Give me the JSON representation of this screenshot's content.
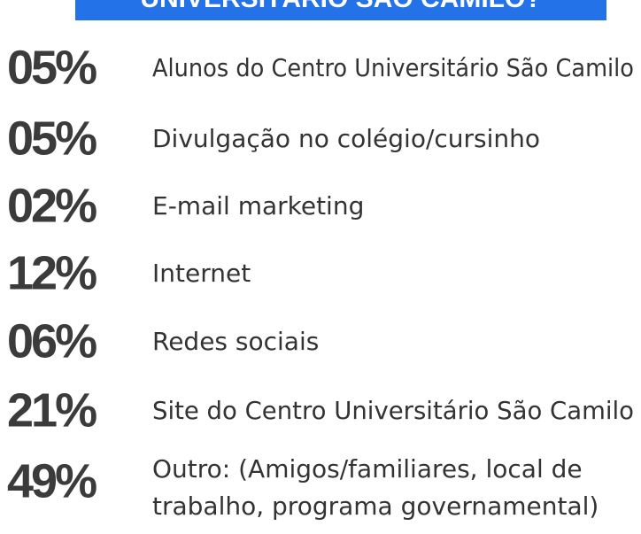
{
  "header": {
    "title": "UNIVERSITÁRIO SÃO CAMILO?"
  },
  "items": [
    {
      "percent": "05%",
      "lines": [
        "Alunos do Centro Universitário São Camilo"
      ]
    },
    {
      "percent": "05%",
      "lines": [
        "Divulgação no colégio/cursinho"
      ]
    },
    {
      "percent": "02%",
      "lines": [
        "E-mail marketing"
      ]
    },
    {
      "percent": "12%",
      "lines": [
        "Internet"
      ]
    },
    {
      "percent": "06%",
      "lines": [
        "Redes sociais"
      ]
    },
    {
      "percent": "21%",
      "lines": [
        "Site do Centro Universitário São Camilo"
      ]
    },
    {
      "percent": "49%",
      "lines": [
        "Outro: (Amigos/familiares, local de",
        "trabalho, programa governamental)"
      ]
    }
  ]
}
